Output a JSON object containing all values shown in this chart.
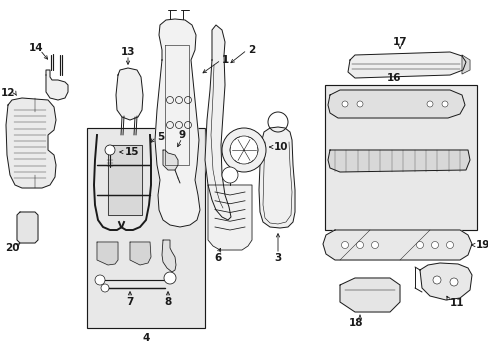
{
  "bg_color": "#ffffff",
  "line_color": "#1a1a1a",
  "fig_width": 4.89,
  "fig_height": 3.6,
  "dpi": 100,
  "label_fontsize": 7.5,
  "lw": 0.7,
  "components": {
    "seat_back_1": {
      "fill": "#f2f2f2"
    },
    "seat_back_2": {
      "fill": "#f0f0f0"
    },
    "headrest_13": {
      "fill": "#f0f0f0"
    },
    "side_panel_12": {
      "fill": "#ebebeb"
    },
    "trim_20": {
      "fill": "#e5e5e5"
    },
    "box_4": {
      "fill": "#e8e8e8"
    },
    "box_16": {
      "fill": "#e8e8e8"
    },
    "cushion_17": {
      "fill": "#eeeeee"
    },
    "riser_19": {
      "fill": "#e8e8e8"
    },
    "cap_18": {
      "fill": "#e5e5e5"
    },
    "bracket_11": {
      "fill": "#e8e8e8"
    },
    "headrest_3": {
      "fill": "#f0f0f0"
    },
    "lumbar_6": {
      "fill": "#f0f0f0"
    }
  }
}
